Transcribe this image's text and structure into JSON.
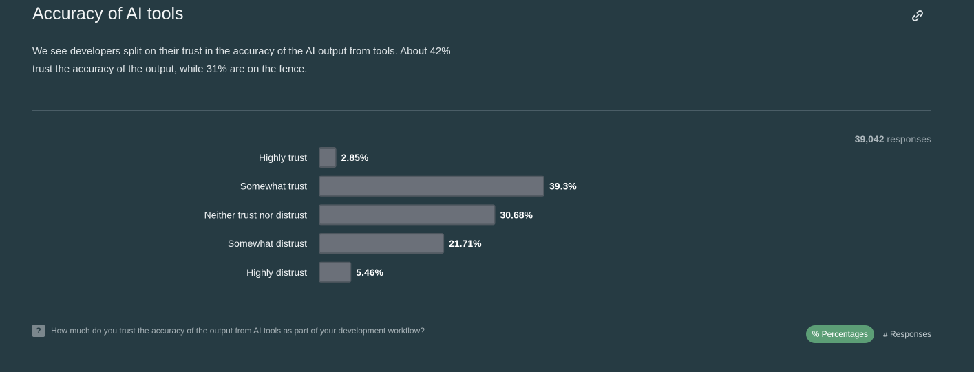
{
  "header": {
    "title": "Accuracy of AI tools",
    "link_icon": "link-icon",
    "description": "We see developers split on their trust in the accuracy of the AI output from tools. About 42% trust the accuracy of the output, while 31% are on the fence."
  },
  "responses": {
    "count": "39,042",
    "label": "responses"
  },
  "chart_data": {
    "type": "bar",
    "orientation": "horizontal",
    "categories": [
      "Highly trust",
      "Somewhat trust",
      "Neither trust nor distrust",
      "Somewhat distrust",
      "Highly distrust"
    ],
    "values": [
      2.85,
      39.3,
      30.68,
      21.71,
      5.46
    ],
    "value_labels": [
      "2.85%",
      "39.3%",
      "30.68%",
      "21.71%",
      "5.46%"
    ],
    "unit": "%",
    "bar_color": "#6b7079",
    "bar_border": "#535b63",
    "xlim": [
      0,
      100
    ],
    "grid": false,
    "legend": false
  },
  "footer": {
    "question_icon": "question-icon",
    "question": "How much do you trust the accuracy of the output from AI tools as part of your development workflow?",
    "toggle_percentages": "% Percentages",
    "toggle_responses": "# Responses"
  }
}
